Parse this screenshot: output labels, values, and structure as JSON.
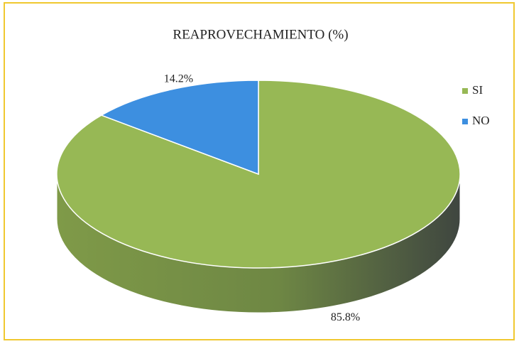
{
  "chart_data": {
    "type": "pie",
    "title": "REAPROVECHAMIENTO (%)",
    "categories": [
      "SI",
      "NO"
    ],
    "values": [
      85.8,
      14.2
    ],
    "value_labels": [
      "85.8%",
      "14.2%"
    ],
    "colors": [
      "#97b855",
      "#3d8fe0"
    ],
    "legend": "right"
  }
}
